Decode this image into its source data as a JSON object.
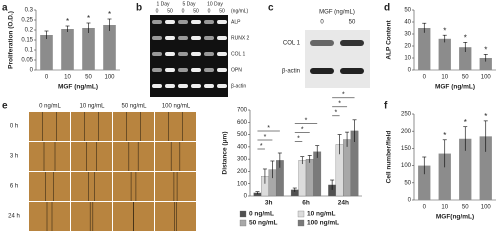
{
  "chart_data": [
    {
      "type": "bar",
      "label": "a",
      "ylabel": "Proliferation (O.D.)",
      "xlabel": "MGF (ng/mL)",
      "categories": [
        "0",
        "10",
        "50",
        "100"
      ],
      "values": [
        0.175,
        0.205,
        0.21,
        0.225
      ],
      "errors": [
        0.02,
        0.015,
        0.025,
        0.03
      ],
      "significance": [
        null,
        "*",
        "*",
        "*"
      ],
      "color": "#8c8c8c",
      "ylim": [
        0,
        0.3
      ],
      "yticks": [
        0,
        0.05,
        0.1,
        0.15,
        0.2,
        0.25,
        0.3
      ]
    },
    {
      "type": "bar",
      "label": "d",
      "ylabel": "ALP Content",
      "xlabel": "MGF (ng/mL)",
      "categories": [
        "0",
        "10",
        "50",
        "100"
      ],
      "values": [
        35,
        26,
        19,
        10
      ],
      "errors": [
        4,
        3,
        4,
        3
      ],
      "significance": [
        null,
        "*",
        "*",
        "*"
      ],
      "color": "#8c8c8c",
      "ylim": [
        0,
        50
      ],
      "yticks": [
        0,
        10,
        20,
        30,
        40,
        50
      ]
    },
    {
      "type": "grouped-bar",
      "ylabel": "Distance (μm)",
      "categories": [
        "3h",
        "6h",
        "24h"
      ],
      "series": [
        {
          "name": "0 ng/mL",
          "color": "#505050",
          "values": [
            25,
            50,
            90
          ],
          "errors": [
            10,
            15,
            40
          ]
        },
        {
          "name": "10 ng/mL",
          "color": "#dcdcdc",
          "values": [
            160,
            290,
            420
          ],
          "errors": [
            60,
            30,
            80
          ]
        },
        {
          "name": "50 ng/mL",
          "color": "#a8a8a8",
          "values": [
            215,
            300,
            460
          ],
          "errors": [
            70,
            30,
            60
          ]
        },
        {
          "name": "100 ng/mL",
          "color": "#7a7a7a",
          "values": [
            290,
            360,
            530
          ],
          "errors": [
            60,
            50,
            90
          ]
        }
      ],
      "significance": [
        [
          "*",
          "*",
          "*"
        ],
        [
          "*",
          "*",
          "*"
        ],
        [
          "*",
          "*",
          "*"
        ]
      ],
      "ylim": [
        0,
        700
      ],
      "yticks": [
        0,
        100,
        200,
        300,
        400,
        500,
        600,
        700
      ]
    },
    {
      "type": "bar",
      "label": "f",
      "ylabel": "Cell number/field",
      "xlabel": "MGF(ng/mL)",
      "categories": [
        "0",
        "10",
        "50",
        "100"
      ],
      "values": [
        100,
        135,
        178,
        185
      ],
      "errors": [
        25,
        40,
        35,
        45
      ],
      "significance": [
        null,
        "*",
        "*",
        "*"
      ],
      "color": "#8c8c8c",
      "ylim": [
        0,
        250
      ],
      "yticks": [
        0,
        50,
        100,
        150,
        200,
        250
      ]
    }
  ],
  "blot_b": {
    "label": "b",
    "groups": [
      "1 Day",
      "5 Day",
      "10 Day"
    ],
    "unit": "(ng/mL)",
    "doses": [
      "0",
      "50",
      "0",
      "50",
      "0",
      "50"
    ],
    "bands": [
      "ALP",
      "RUNX 2",
      "COL 1",
      "OPN",
      "β-actin"
    ]
  },
  "blot_c": {
    "label": "c",
    "title": "MGF (ng/mL)",
    "doses": [
      "0",
      "50"
    ],
    "bands": [
      "COL 1",
      "β-actin"
    ]
  },
  "wound_e": {
    "label": "e",
    "columns": [
      "0 ng/mL",
      "10 ng/mL",
      "50 ng/mL",
      "100 ng/mL"
    ],
    "rows": [
      "0 h",
      "3 h",
      "6 h",
      "24 h"
    ]
  }
}
